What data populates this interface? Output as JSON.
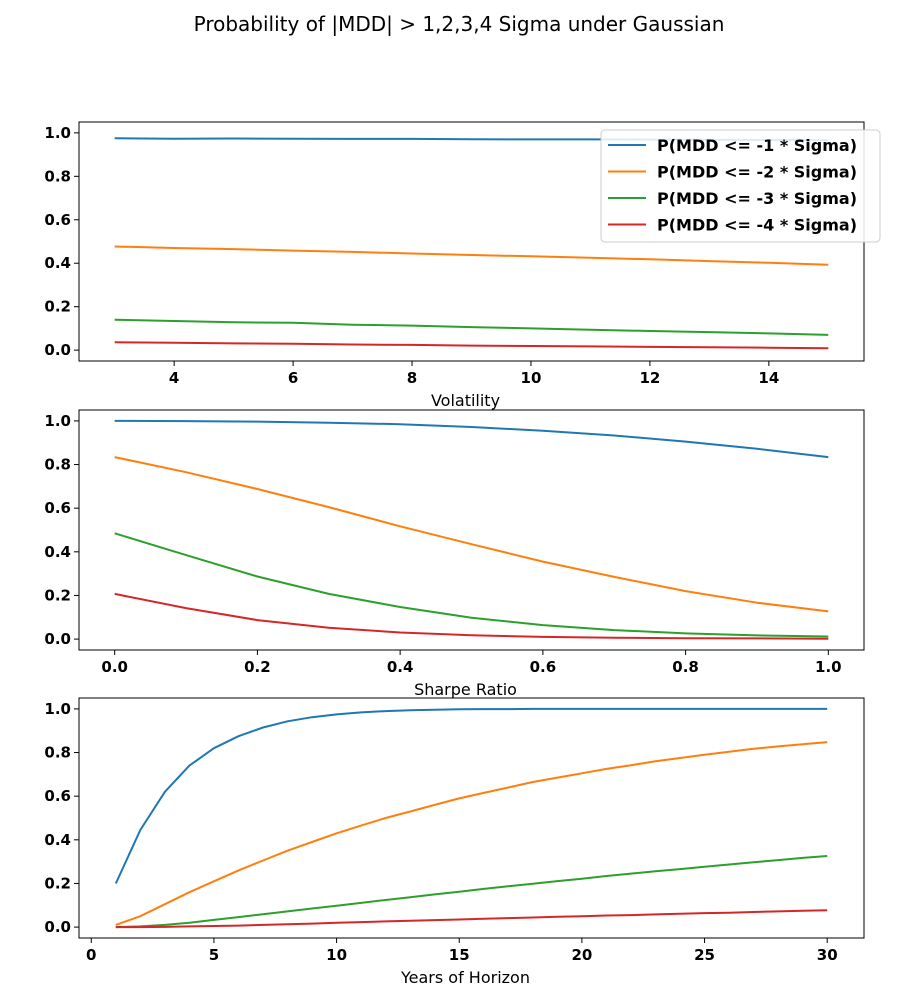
{
  "title": "Probability of |MDD| > 1,2,3,4 Sigma under Gaussian",
  "legend": {
    "placement": "top-right",
    "entries": [
      "P(MDD <= -1 * Sigma)",
      "P(MDD <= -2 * Sigma)",
      "P(MDD <= -3 * Sigma)",
      "P(MDD <= -4 * Sigma)"
    ]
  },
  "colors": [
    "#1f77b4",
    "#ff7f0e",
    "#2ca02c",
    "#d62728"
  ],
  "chart_data": [
    {
      "type": "line",
      "xlabel": "Volatility",
      "ylabel": "",
      "xlim": [
        2.4,
        15.6
      ],
      "ylim": [
        -0.05,
        1.05
      ],
      "xticks": [
        4,
        6,
        8,
        10,
        12,
        14
      ],
      "yticks": [
        0.0,
        0.2,
        0.4,
        0.6,
        0.8,
        1.0
      ],
      "x": [
        3,
        4,
        5,
        6,
        7,
        8,
        9,
        10,
        11,
        12,
        13,
        14,
        15
      ],
      "series": [
        {
          "name": "P(MDD <= -1 * Sigma)",
          "values": [
            0.975,
            0.973,
            0.974,
            0.973,
            0.972,
            0.972,
            0.971,
            0.97,
            0.97,
            0.969,
            0.968,
            0.967,
            0.966
          ]
        },
        {
          "name": "P(MDD <= -2 * Sigma)",
          "values": [
            0.477,
            0.47,
            0.465,
            0.458,
            0.452,
            0.445,
            0.438,
            0.432,
            0.425,
            0.418,
            0.41,
            0.402,
            0.393
          ]
        },
        {
          "name": "P(MDD <= -3 * Sigma)",
          "values": [
            0.14,
            0.134,
            0.128,
            0.126,
            0.117,
            0.113,
            0.106,
            0.1,
            0.094,
            0.088,
            0.083,
            0.077,
            0.07
          ]
        },
        {
          "name": "P(MDD <= -4 * Sigma)",
          "values": [
            0.036,
            0.034,
            0.031,
            0.029,
            0.026,
            0.024,
            0.021,
            0.019,
            0.017,
            0.015,
            0.013,
            0.011,
            0.009
          ]
        }
      ]
    },
    {
      "type": "line",
      "xlabel": "Sharpe Ratio",
      "ylabel": "",
      "xlim": [
        -0.05,
        1.05
      ],
      "ylim": [
        -0.05,
        1.05
      ],
      "xticks": [
        0.0,
        0.2,
        0.4,
        0.6,
        0.8,
        1.0
      ],
      "yticks": [
        0.0,
        0.2,
        0.4,
        0.6,
        0.8,
        1.0
      ],
      "x": [
        0.0,
        0.1,
        0.2,
        0.3,
        0.4,
        0.5,
        0.6,
        0.7,
        0.8,
        0.9,
        1.0
      ],
      "series": [
        {
          "name": "P(MDD <= -1 * Sigma)",
          "values": [
            1.0,
            0.999,
            0.997,
            0.992,
            0.985,
            0.972,
            0.955,
            0.933,
            0.905,
            0.872,
            0.834
          ]
        },
        {
          "name": "P(MDD <= -2 * Sigma)",
          "values": [
            0.834,
            0.765,
            0.688,
            0.605,
            0.517,
            0.435,
            0.355,
            0.285,
            0.22,
            0.167,
            0.127
          ]
        },
        {
          "name": "P(MDD <= -3 * Sigma)",
          "values": [
            0.485,
            0.385,
            0.287,
            0.207,
            0.147,
            0.098,
            0.064,
            0.041,
            0.026,
            0.017,
            0.012
          ]
        },
        {
          "name": "P(MDD <= -4 * Sigma)",
          "values": [
            0.207,
            0.142,
            0.087,
            0.052,
            0.03,
            0.018,
            0.01,
            0.006,
            0.004,
            0.003,
            0.002
          ]
        }
      ]
    },
    {
      "type": "line",
      "xlabel": "Years of Horizon",
      "ylabel": "",
      "xlim": [
        -0.5,
        31.5
      ],
      "ylim": [
        -0.05,
        1.05
      ],
      "xticks": [
        0,
        5,
        10,
        15,
        20,
        25,
        30
      ],
      "yticks": [
        0.0,
        0.2,
        0.4,
        0.6,
        0.8,
        1.0
      ],
      "x": [
        1,
        2,
        3,
        4,
        5,
        6,
        7,
        8,
        9,
        10,
        11,
        12,
        13,
        14,
        15,
        16,
        17,
        18,
        19,
        20,
        21,
        22,
        23,
        24,
        25,
        26,
        27,
        28,
        29,
        30
      ],
      "series": [
        {
          "name": "P(MDD <= -1 * Sigma)",
          "values": [
            0.2,
            0.445,
            0.62,
            0.74,
            0.82,
            0.875,
            0.915,
            0.943,
            0.962,
            0.975,
            0.984,
            0.99,
            0.994,
            0.996,
            0.998,
            0.999,
            0.999,
            1.0,
            1.0,
            1.0,
            1.0,
            1.0,
            1.0,
            1.0,
            1.0,
            1.0,
            1.0,
            1.0,
            1.0,
            1.0
          ]
        },
        {
          "name": "P(MDD <= -2 * Sigma)",
          "values": [
            0.01,
            0.05,
            0.105,
            0.16,
            0.21,
            0.26,
            0.305,
            0.35,
            0.39,
            0.43,
            0.465,
            0.5,
            0.53,
            0.56,
            0.59,
            0.615,
            0.64,
            0.665,
            0.685,
            0.705,
            0.725,
            0.742,
            0.76,
            0.775,
            0.79,
            0.804,
            0.817,
            0.828,
            0.838,
            0.848
          ]
        },
        {
          "name": "P(MDD <= -3 * Sigma)",
          "values": [
            0.0,
            0.003,
            0.01,
            0.02,
            0.033,
            0.046,
            0.059,
            0.072,
            0.085,
            0.098,
            0.111,
            0.124,
            0.137,
            0.15,
            0.162,
            0.175,
            0.187,
            0.199,
            0.211,
            0.222,
            0.234,
            0.245,
            0.256,
            0.266,
            0.277,
            0.287,
            0.297,
            0.307,
            0.317,
            0.326
          ]
        },
        {
          "name": "P(MDD <= -4 * Sigma)",
          "values": [
            0.0,
            0.0,
            0.001,
            0.003,
            0.005,
            0.007,
            0.01,
            0.013,
            0.016,
            0.02,
            0.023,
            0.026,
            0.029,
            0.032,
            0.035,
            0.038,
            0.041,
            0.044,
            0.047,
            0.05,
            0.053,
            0.055,
            0.058,
            0.061,
            0.064,
            0.066,
            0.069,
            0.072,
            0.075,
            0.077
          ]
        }
      ]
    }
  ]
}
